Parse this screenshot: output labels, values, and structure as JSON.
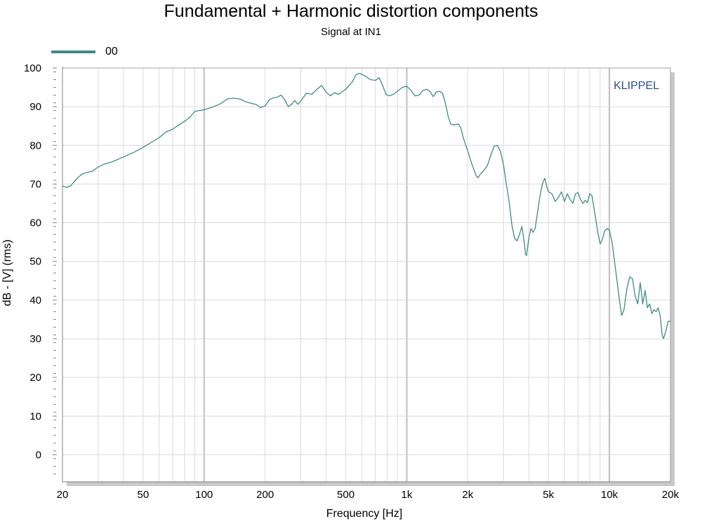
{
  "chart_data": {
    "type": "line",
    "title": "Fundamental + Harmonic distortion components",
    "subtitle": "Signal at IN1",
    "xlabel": "Frequency [Hz]",
    "ylabel": "dB - [V]  (rms)",
    "x_scale": "log",
    "xlim": [
      20,
      20000
    ],
    "ylim": [
      -7,
      100
    ],
    "x_ticks": [
      20,
      50,
      100,
      200,
      500,
      1000,
      2000,
      5000,
      10000,
      20000
    ],
    "x_tick_labels": [
      "20",
      "50",
      "100",
      "200",
      "500",
      "1k",
      "2k",
      "5k",
      "10k",
      "20k"
    ],
    "y_ticks": [
      0,
      10,
      20,
      30,
      40,
      50,
      60,
      70,
      80,
      90,
      100
    ],
    "y_tick_labels": [
      "0",
      "10",
      "20",
      "30",
      "40",
      "50",
      "60",
      "70",
      "80",
      "90",
      "100"
    ],
    "grid": true,
    "legend_position": "top-left",
    "watermark": "KLIPPEL",
    "series": [
      {
        "name": "00",
        "color": "#3f8a86",
        "points": [
          [
            20,
            69.5
          ],
          [
            21,
            69.1
          ],
          [
            22,
            69.6
          ],
          [
            23,
            70.8
          ],
          [
            24,
            71.8
          ],
          [
            25,
            72.6
          ],
          [
            26,
            72.9
          ],
          [
            28,
            73.3
          ],
          [
            30,
            74.4
          ],
          [
            32,
            75.1
          ],
          [
            35,
            75.7
          ],
          [
            38,
            76.5
          ],
          [
            40,
            77.0
          ],
          [
            45,
            78.2
          ],
          [
            50,
            79.5
          ],
          [
            55,
            80.8
          ],
          [
            60,
            82.0
          ],
          [
            65,
            83.5
          ],
          [
            70,
            84.2
          ],
          [
            75,
            85.3
          ],
          [
            80,
            86.2
          ],
          [
            85,
            87.3
          ],
          [
            90,
            88.8
          ],
          [
            95,
            89.0
          ],
          [
            100,
            89.2
          ],
          [
            110,
            89.9
          ],
          [
            120,
            90.7
          ],
          [
            130,
            92.0
          ],
          [
            140,
            92.2
          ],
          [
            150,
            92.0
          ],
          [
            160,
            91.3
          ],
          [
            170,
            90.9
          ],
          [
            180,
            90.6
          ],
          [
            190,
            89.8
          ],
          [
            200,
            90.2
          ],
          [
            210,
            91.8
          ],
          [
            220,
            92.3
          ],
          [
            230,
            92.5
          ],
          [
            240,
            93.0
          ],
          [
            250,
            91.8
          ],
          [
            260,
            90.0
          ],
          [
            270,
            90.6
          ],
          [
            280,
            91.6
          ],
          [
            290,
            90.6
          ],
          [
            300,
            91.5
          ],
          [
            320,
            93.5
          ],
          [
            340,
            93.2
          ],
          [
            360,
            94.5
          ],
          [
            380,
            95.5
          ],
          [
            400,
            93.8
          ],
          [
            420,
            92.8
          ],
          [
            440,
            93.6
          ],
          [
            460,
            93.2
          ],
          [
            480,
            93.9
          ],
          [
            500,
            94.5
          ],
          [
            520,
            95.5
          ],
          [
            540,
            96.5
          ],
          [
            560,
            98.2
          ],
          [
            580,
            98.6
          ],
          [
            600,
            98.4
          ],
          [
            630,
            97.8
          ],
          [
            660,
            97.0
          ],
          [
            700,
            96.8
          ],
          [
            730,
            97.5
          ],
          [
            760,
            95.5
          ],
          [
            790,
            93.2
          ],
          [
            820,
            92.8
          ],
          [
            860,
            93.2
          ],
          [
            900,
            94.0
          ],
          [
            950,
            95.0
          ],
          [
            1000,
            95.3
          ],
          [
            1050,
            94.2
          ],
          [
            1100,
            92.8
          ],
          [
            1150,
            93.0
          ],
          [
            1200,
            94.2
          ],
          [
            1250,
            94.5
          ],
          [
            1300,
            94.0
          ],
          [
            1350,
            92.6
          ],
          [
            1400,
            93.8
          ],
          [
            1450,
            94.0
          ],
          [
            1500,
            93.5
          ],
          [
            1550,
            91.0
          ],
          [
            1600,
            87.5
          ],
          [
            1650,
            85.5
          ],
          [
            1700,
            85.3
          ],
          [
            1800,
            85.5
          ],
          [
            1850,
            84.5
          ],
          [
            1900,
            82.0
          ],
          [
            2000,
            78.5
          ],
          [
            2100,
            75.0
          ],
          [
            2200,
            72.2
          ],
          [
            2250,
            71.6
          ],
          [
            2300,
            72.5
          ],
          [
            2400,
            73.5
          ],
          [
            2500,
            74.8
          ],
          [
            2600,
            77.5
          ],
          [
            2700,
            79.8
          ],
          [
            2800,
            80.0
          ],
          [
            2900,
            78.5
          ],
          [
            3000,
            75.0
          ],
          [
            3100,
            70.0
          ],
          [
            3200,
            65.5
          ],
          [
            3300,
            59.5
          ],
          [
            3400,
            56.0
          ],
          [
            3500,
            55.3
          ],
          [
            3600,
            57.0
          ],
          [
            3700,
            59.0
          ],
          [
            3800,
            55.0
          ],
          [
            3850,
            52.0
          ],
          [
            3900,
            51.5
          ],
          [
            4000,
            56.0
          ],
          [
            4100,
            58.5
          ],
          [
            4200,
            57.5
          ],
          [
            4300,
            58.5
          ],
          [
            4400,
            62.0
          ],
          [
            4500,
            65.5
          ],
          [
            4600,
            68.5
          ],
          [
            4700,
            70.5
          ],
          [
            4800,
            71.5
          ],
          [
            4900,
            69.5
          ],
          [
            5000,
            68.0
          ],
          [
            5200,
            67.5
          ],
          [
            5400,
            65.5
          ],
          [
            5600,
            66.5
          ],
          [
            5800,
            68.0
          ],
          [
            6000,
            65.5
          ],
          [
            6200,
            67.5
          ],
          [
            6400,
            66.0
          ],
          [
            6600,
            65.0
          ],
          [
            6800,
            67.5
          ],
          [
            7000,
            67.8
          ],
          [
            7200,
            66.0
          ],
          [
            7400,
            65.0
          ],
          [
            7600,
            65.8
          ],
          [
            7800,
            65.2
          ],
          [
            8000,
            67.5
          ],
          [
            8200,
            67.0
          ],
          [
            8500,
            62.0
          ],
          [
            8800,
            57.0
          ],
          [
            9000,
            54.5
          ],
          [
            9200,
            55.5
          ],
          [
            9500,
            58.0
          ],
          [
            9800,
            58.5
          ],
          [
            10000,
            58.0
          ],
          [
            10300,
            55.0
          ],
          [
            10600,
            50.0
          ],
          [
            10900,
            45.0
          ],
          [
            11200,
            40.0
          ],
          [
            11500,
            36.0
          ],
          [
            11800,
            37.5
          ],
          [
            12200,
            43.0
          ],
          [
            12600,
            46.0
          ],
          [
            13000,
            45.5
          ],
          [
            13400,
            41.0
          ],
          [
            13800,
            39.0
          ],
          [
            14200,
            44.5
          ],
          [
            14600,
            39.0
          ],
          [
            15000,
            42.5
          ],
          [
            15400,
            38.0
          ],
          [
            15800,
            39.0
          ],
          [
            16200,
            36.5
          ],
          [
            16600,
            37.5
          ],
          [
            17000,
            37.0
          ],
          [
            17400,
            38.0
          ],
          [
            17800,
            36.0
          ],
          [
            18200,
            31.0
          ],
          [
            18500,
            30.0
          ],
          [
            19000,
            32.0
          ],
          [
            19500,
            34.5
          ],
          [
            20000,
            34.5
          ]
        ]
      }
    ]
  }
}
